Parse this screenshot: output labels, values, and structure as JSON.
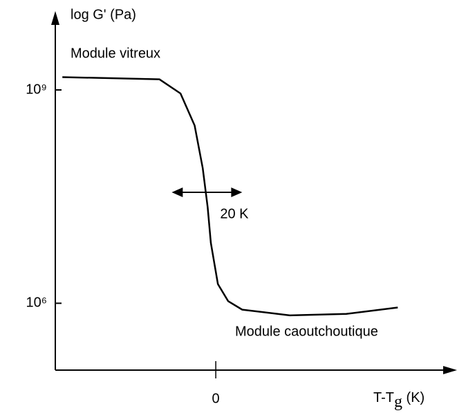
{
  "chart_data": {
    "type": "line",
    "y_label": "log G' (Pa)",
    "x_label": [
      "T-T",
      "g",
      " (K)"
    ],
    "annotations": [
      "Module vitreux",
      "Module caoutchoutique"
    ],
    "interval": {
      "label": "20 K",
      "x": [
        -12.5,
        7.5
      ],
      "y": 7.56
    },
    "x": [
      -43.5,
      -16,
      -10,
      -6,
      -3.7,
      -2.3,
      -1.4,
      0.6,
      3.5,
      7.5,
      21,
      37,
      51.6
    ],
    "series": [
      {
        "color": "#000000",
        "values": [
          9.18,
          9.15,
          8.95,
          8.5,
          7.9,
          7.35,
          6.85,
          6.27,
          6.03,
          5.91,
          5.83,
          5.85,
          5.94
        ]
      }
    ],
    "xlim": [
      -45.5,
      68.2
    ],
    "ylim": [
      5.06,
      10.07
    ],
    "xticks": [
      0
    ],
    "yticks": [
      {
        "value": 9,
        "label": "10⁹"
      },
      {
        "value": 6,
        "label": "10⁶"
      }
    ]
  }
}
